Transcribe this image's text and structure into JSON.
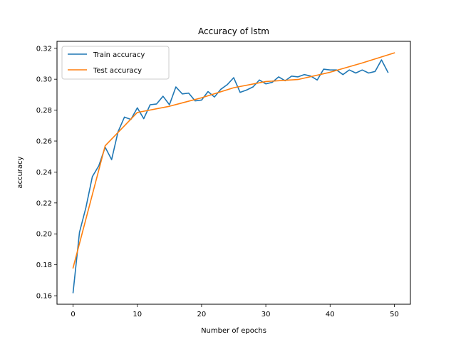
{
  "chart_data": {
    "type": "line",
    "title": "Accuracy of lstm",
    "xlabel": "Number of epochs",
    "ylabel": "accuracy",
    "xlim": [
      -2.5,
      52.5
    ],
    "ylim": [
      0.1545,
      0.3245
    ],
    "xticks": [
      0,
      10,
      20,
      30,
      40,
      50
    ],
    "yticks": [
      0.16,
      0.18,
      0.2,
      0.22,
      0.24,
      0.26,
      0.28,
      0.3,
      0.32
    ],
    "ytick_labels": [
      "0.16",
      "0.18",
      "0.20",
      "0.22",
      "0.24",
      "0.26",
      "0.28",
      "0.30",
      "0.32"
    ],
    "grid": false,
    "legend": "top-left",
    "series": [
      {
        "name": "Train accuracy",
        "color": "#1f77b4",
        "x": [
          0,
          1,
          2,
          3,
          4,
          5,
          6,
          7,
          8,
          9,
          10,
          11,
          12,
          13,
          14,
          15,
          16,
          17,
          18,
          19,
          20,
          21,
          22,
          23,
          24,
          25,
          26,
          27,
          28,
          29,
          30,
          31,
          32,
          33,
          34,
          35,
          36,
          37,
          38,
          39,
          40,
          41,
          42,
          43,
          44,
          45,
          46,
          47,
          48,
          49
        ],
        "y": [
          0.162,
          0.201,
          0.217,
          0.237,
          0.244,
          0.256,
          0.248,
          0.266,
          0.2755,
          0.274,
          0.2815,
          0.2745,
          0.2835,
          0.284,
          0.289,
          0.2835,
          0.295,
          0.2905,
          0.291,
          0.286,
          0.2865,
          0.292,
          0.2885,
          0.2935,
          0.2965,
          0.301,
          0.2915,
          0.293,
          0.295,
          0.2995,
          0.297,
          0.298,
          0.3015,
          0.299,
          0.302,
          0.3015,
          0.303,
          0.302,
          0.2995,
          0.3065,
          0.306,
          0.306,
          0.303,
          0.306,
          0.304,
          0.306,
          0.304,
          0.305,
          0.3125,
          0.3045
        ]
      },
      {
        "name": "Test accuracy",
        "color": "#ff7f0e",
        "x": [
          0,
          5,
          10,
          15,
          20,
          25,
          30,
          35,
          40,
          45,
          50
        ],
        "y": [
          0.178,
          0.257,
          0.2785,
          0.2825,
          0.288,
          0.2945,
          0.2985,
          0.2998,
          0.3045,
          0.3105,
          0.317
        ]
      }
    ]
  }
}
